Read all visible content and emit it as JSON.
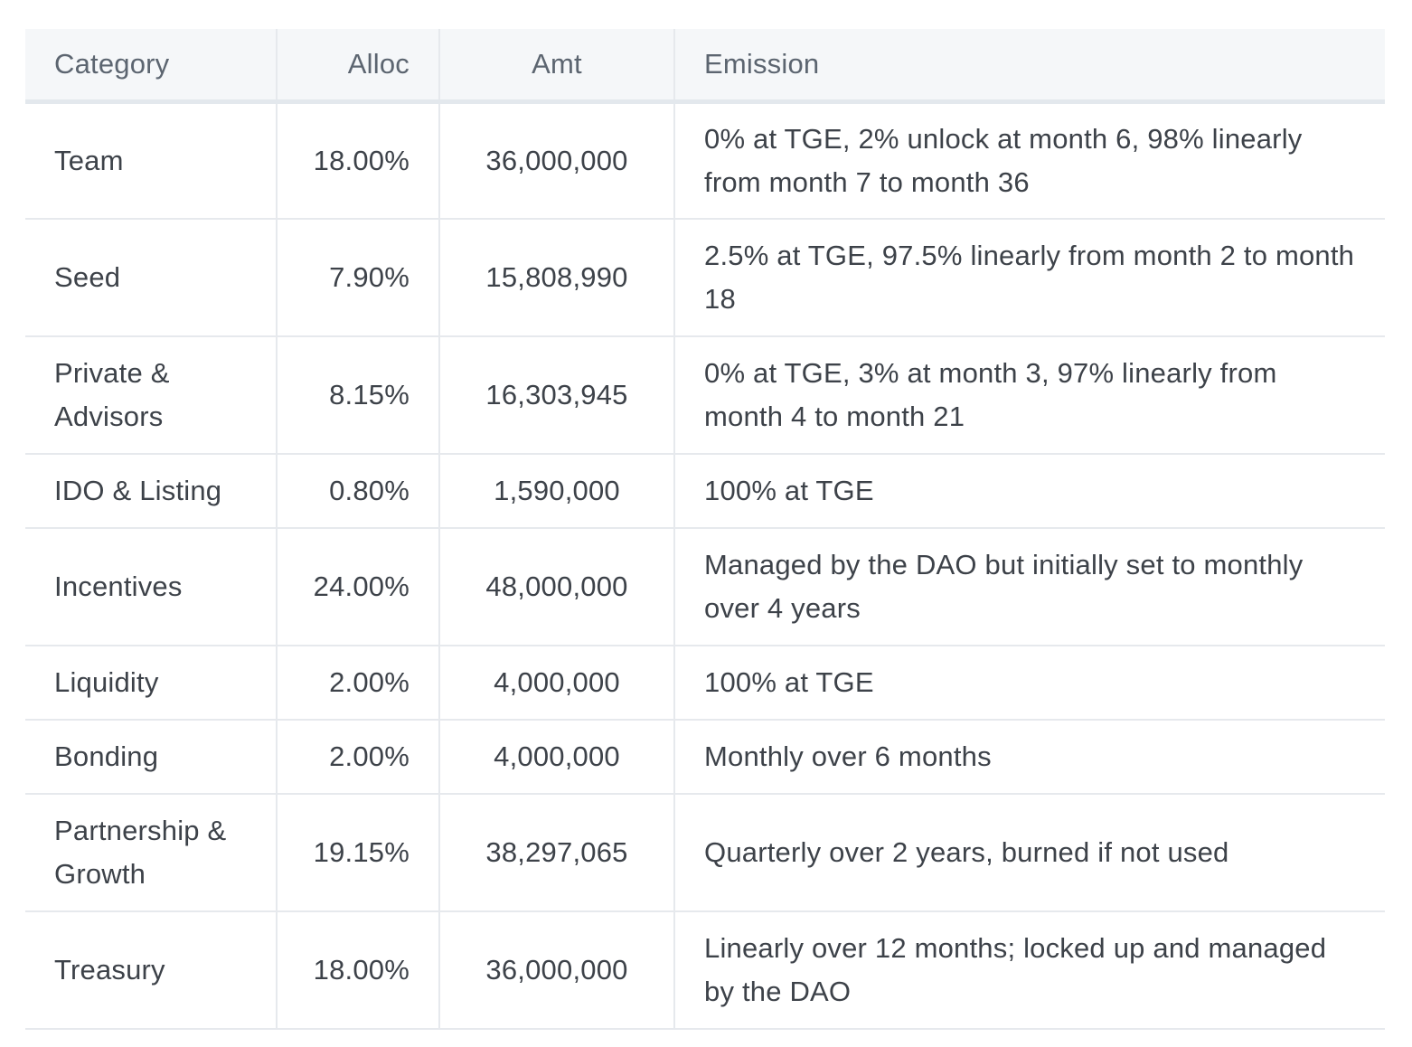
{
  "table": {
    "headers": [
      "Category",
      "Alloc",
      "Amt",
      "Emission"
    ],
    "rows": [
      {
        "category": "Team",
        "alloc": "18.00%",
        "amt": "36,000,000",
        "emission": "0% at TGE, 2% unlock at month 6, 98% linearly from month 7 to month 36"
      },
      {
        "category": "Seed",
        "alloc": "7.90%",
        "amt": "15,808,990",
        "emission": "2.5% at TGE, 97.5% linearly from month 2 to month 18"
      },
      {
        "category": "Private & Advisors",
        "alloc": "8.15%",
        "amt": "16,303,945",
        "emission": "0% at TGE, 3% at month 3, 97% linearly from month 4 to month 21"
      },
      {
        "category": "IDO & Listing",
        "alloc": "0.80%",
        "amt": "1,590,000",
        "emission": "100% at TGE"
      },
      {
        "category": "Incentives",
        "alloc": "24.00%",
        "amt": "48,000,000",
        "emission": "Managed by the DAO but initially set to monthly over 4 years"
      },
      {
        "category": "Liquidity",
        "alloc": "2.00%",
        "amt": "4,000,000",
        "emission": "100% at TGE"
      },
      {
        "category": "Bonding",
        "alloc": "2.00%",
        "amt": "4,000,000",
        "emission": "Monthly over 6 months"
      },
      {
        "category": "Partnership & Growth",
        "alloc": "19.15%",
        "amt": "38,297,065",
        "emission": "Quarterly over 2 years, burned if not used"
      },
      {
        "category": "Treasury",
        "alloc": "18.00%",
        "amt": "36,000,000",
        "emission": "Linearly over 12 months; locked up and managed by the DAO"
      }
    ]
  }
}
